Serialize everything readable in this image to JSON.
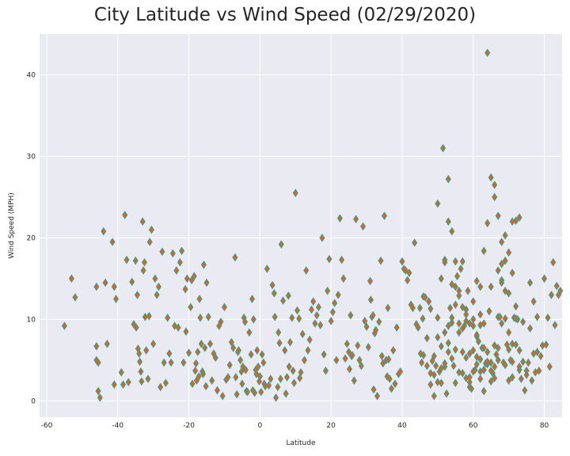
{
  "chart_data": {
    "type": "scatter",
    "title": "City Latitude vs Wind Speed (02/29/2020)",
    "xlabel": "Latitude",
    "ylabel": "Wind Speed (MPH)",
    "xlim": [
      -62,
      85
    ],
    "ylim": [
      -2,
      45
    ],
    "xticks": [
      -60,
      -40,
      -20,
      0,
      20,
      40,
      60,
      80
    ],
    "yticks": [
      0,
      10,
      20,
      30,
      40
    ],
    "grid": true,
    "marker": "diamond",
    "marker_fill": "#d2691e",
    "marker_edge": "#2f9e9a",
    "background": "#eaeaf2",
    "points": [
      [
        -55,
        9.2
      ],
      [
        -53,
        15
      ],
      [
        -52,
        12.7
      ],
      [
        -46,
        6.7
      ],
      [
        -46,
        5
      ],
      [
        -46,
        14
      ],
      [
        -45.5,
        4.7
      ],
      [
        -45.5,
        1.2
      ],
      [
        -45,
        0.4
      ],
      [
        -44,
        20.8
      ],
      [
        -43.5,
        14.5
      ],
      [
        -43,
        7
      ],
      [
        -41.5,
        19.5
      ],
      [
        -41,
        14
      ],
      [
        -41,
        2
      ],
      [
        -40.5,
        12.5
      ],
      [
        -39,
        3.5
      ],
      [
        -38.5,
        2
      ],
      [
        -38,
        22.8
      ],
      [
        -37.5,
        17.3
      ],
      [
        -37,
        2.3
      ],
      [
        -36,
        14.6
      ],
      [
        -35.5,
        9.4
      ],
      [
        -35,
        17.2
      ],
      [
        -34.8,
        9
      ],
      [
        -34.5,
        13
      ],
      [
        -34.3,
        6.4
      ],
      [
        -34,
        5.8
      ],
      [
        -33.8,
        4.8
      ],
      [
        -33.5,
        3.6
      ],
      [
        -33.3,
        2.4
      ],
      [
        -33,
        22
      ],
      [
        -32.8,
        16
      ],
      [
        -32.5,
        17
      ],
      [
        -32.3,
        10.3
      ],
      [
        -32,
        6.2
      ],
      [
        -31.5,
        2.7
      ],
      [
        -31.2,
        10.4
      ],
      [
        -31,
        19.5
      ],
      [
        -30.5,
        21
      ],
      [
        -30,
        7
      ],
      [
        -29.5,
        15
      ],
      [
        -29,
        13
      ],
      [
        -28.5,
        14
      ],
      [
        -28,
        1.7
      ],
      [
        -27.5,
        18.3
      ],
      [
        -27,
        4.7
      ],
      [
        -26.5,
        2.2
      ],
      [
        -26,
        10.2
      ],
      [
        -25.5,
        5.8
      ],
      [
        -25,
        4.7
      ],
      [
        -24.5,
        18.1
      ],
      [
        -24,
        9.2
      ],
      [
        -23.5,
        16
      ],
      [
        -23,
        9
      ],
      [
        -22.5,
        17
      ],
      [
        -22,
        18.4
      ],
      [
        -21.5,
        4.7
      ],
      [
        -21,
        13.7
      ],
      [
        -20.8,
        8.5
      ],
      [
        -20.5,
        15
      ],
      [
        -20,
        5.9
      ],
      [
        -19.5,
        11.5
      ],
      [
        -19.2,
        14.8
      ],
      [
        -19,
        2.1
      ],
      [
        -18.5,
        15.3
      ],
      [
        -18.2,
        3.7
      ],
      [
        -18,
        4.6
      ],
      [
        -17.8,
        2.5
      ],
      [
        -17.5,
        6
      ],
      [
        -17.2,
        3
      ],
      [
        -17,
        12.5
      ],
      [
        -16.8,
        10.2
      ],
      [
        -16.5,
        7
      ],
      [
        -16.2,
        3.6
      ],
      [
        -16,
        3.3
      ],
      [
        -15.8,
        16.7
      ],
      [
        -15.5,
        6.5
      ],
      [
        -15.2,
        1.8
      ],
      [
        -15,
        14.5
      ],
      [
        -14.5,
        10.3
      ],
      [
        -14,
        7
      ],
      [
        -13.5,
        2.5
      ],
      [
        -13,
        5.8
      ],
      [
        -12.5,
        5.3
      ],
      [
        -12,
        1.3
      ],
      [
        -11.5,
        9.2
      ],
      [
        -11,
        9.7
      ],
      [
        -10.5,
        0.6
      ],
      [
        -10,
        11.5
      ],
      [
        -9.5,
        2.6
      ],
      [
        -9,
        2.9
      ],
      [
        -8.5,
        4.4
      ],
      [
        -8,
        7.2
      ],
      [
        -7.5,
        6.5
      ],
      [
        -7,
        17.6
      ],
      [
        -6.8,
        2.9
      ],
      [
        -6.5,
        0.8
      ],
      [
        -6.2,
        6
      ],
      [
        -6,
        6.2
      ],
      [
        -5.5,
        5
      ],
      [
        -5.2,
        3.6
      ],
      [
        -5,
        2.1
      ],
      [
        -4.8,
        4.2
      ],
      [
        -4.5,
        10.2
      ],
      [
        -4.2,
        9.7
      ],
      [
        -4,
        3.8
      ],
      [
        -3.8,
        1.2
      ],
      [
        -3.5,
        1.1
      ],
      [
        -3,
        8.4
      ],
      [
        -2.5,
        5.7
      ],
      [
        -2.2,
        12.5
      ],
      [
        -2,
        1.3
      ],
      [
        -1.8,
        10
      ],
      [
        -1.5,
        1
      ],
      [
        -1.2,
        3.8
      ],
      [
        -1,
        3.3
      ],
      [
        -0.8,
        6.2
      ],
      [
        -0.5,
        4.2
      ],
      [
        -0.2,
        2.4
      ],
      [
        0,
        3
      ],
      [
        0.3,
        1.1
      ],
      [
        0.6,
        5.7
      ],
      [
        1,
        4.7
      ],
      [
        1.2,
        2.1
      ],
      [
        1.5,
        1.8
      ],
      [
        2,
        16.2
      ],
      [
        2.5,
        1.9
      ],
      [
        3,
        2.7
      ],
      [
        3.5,
        14.2
      ],
      [
        4,
        13.2
      ],
      [
        4.2,
        10.3
      ],
      [
        4.5,
        0.4
      ],
      [
        5,
        1.7
      ],
      [
        5.2,
        8.4
      ],
      [
        5.5,
        7.1
      ],
      [
        5.8,
        2.7
      ],
      [
        6,
        19.2
      ],
      [
        6.5,
        12.3
      ],
      [
        7,
        6.2
      ],
      [
        7.3,
        0.9
      ],
      [
        7.6,
        2.9
      ],
      [
        8,
        12.9
      ],
      [
        8.2,
        4.2
      ],
      [
        8.5,
        7.2
      ],
      [
        9,
        10.2
      ],
      [
        9.3,
        3.7
      ],
      [
        9.6,
        2.2
      ],
      [
        10,
        25.5
      ],
      [
        10.5,
        11.1
      ],
      [
        11,
        10.1
      ],
      [
        11.2,
        2.8
      ],
      [
        11.5,
        3.5
      ],
      [
        12,
        8.2
      ],
      [
        12.5,
        5
      ],
      [
        13,
        16
      ],
      [
        13.5,
        6.2
      ],
      [
        14,
        7.5
      ],
      [
        14.5,
        11.2
      ],
      [
        15,
        12.2
      ],
      [
        15.5,
        9.5
      ],
      [
        16,
        10.5
      ],
      [
        16.5,
        11.5
      ],
      [
        17,
        9.3
      ],
      [
        17.5,
        20
      ],
      [
        18,
        5.7
      ],
      [
        18.5,
        3.7
      ],
      [
        19,
        13.5
      ],
      [
        19.5,
        17.4
      ],
      [
        20,
        9.8
      ],
      [
        20.5,
        10.9
      ],
      [
        21,
        12
      ],
      [
        21.5,
        5
      ],
      [
        22,
        13
      ],
      [
        22.5,
        22.4
      ],
      [
        23,
        17.3
      ],
      [
        23.5,
        15
      ],
      [
        24,
        5.2
      ],
      [
        24.5,
        7
      ],
      [
        25,
        6
      ],
      [
        25.2,
        3.9
      ],
      [
        25.5,
        10.5
      ],
      [
        25.8,
        5.5
      ],
      [
        26,
        5.6
      ],
      [
        26.5,
        2.5
      ],
      [
        27,
        22.3
      ],
      [
        27.5,
        6.8
      ],
      [
        28,
        5
      ],
      [
        28.5,
        4.3
      ],
      [
        29,
        21.4
      ],
      [
        29.5,
        9.8
      ],
      [
        30,
        9.1
      ],
      [
        30.5,
        6.6
      ],
      [
        31,
        14.7
      ],
      [
        31.2,
        12.4
      ],
      [
        31.5,
        10.3
      ],
      [
        31.8,
        10.5
      ],
      [
        32,
        1.4
      ],
      [
        32.3,
        8.3
      ],
      [
        32.6,
        8.7
      ],
      [
        33,
        0.6
      ],
      [
        33.5,
        9.7
      ],
      [
        34,
        17.2
      ],
      [
        34.3,
        5.5
      ],
      [
        34.6,
        4.6
      ],
      [
        35,
        22.7
      ],
      [
        35.5,
        5
      ],
      [
        35.8,
        3
      ],
      [
        36,
        11.4
      ],
      [
        36.2,
        5.1
      ],
      [
        36.5,
        2.7
      ],
      [
        37,
        1.5
      ],
      [
        37.5,
        6.2
      ],
      [
        38,
        2.1
      ],
      [
        38.5,
        9
      ],
      [
        39,
        3.3
      ],
      [
        39.5,
        3.6
      ],
      [
        40,
        17.1
      ],
      [
        40.5,
        16.2
      ],
      [
        41,
        16
      ],
      [
        41.5,
        14.8
      ],
      [
        42,
        15.7
      ],
      [
        42.5,
        11.8
      ],
      [
        43,
        11.4
      ],
      [
        43.5,
        19.4
      ],
      [
        44,
        9.4
      ],
      [
        44.5,
        9
      ],
      [
        45,
        11.4
      ],
      [
        45.2,
        5.8
      ],
      [
        45.5,
        4.7
      ],
      [
        45.8,
        10.1
      ],
      [
        46,
        12.8
      ],
      [
        46.5,
        12.7
      ],
      [
        47,
        7.7
      ],
      [
        47.5,
        12.2
      ],
      [
        48,
        11.3
      ],
      [
        48.5,
        4.9
      ],
      [
        49,
        0.6
      ],
      [
        49.5,
        4.3
      ],
      [
        50,
        10.2
      ],
      [
        50.5,
        3.6
      ],
      [
        51,
        2.2
      ],
      [
        51.5,
        31
      ],
      [
        52,
        4.2
      ],
      [
        52.5,
        0.9
      ],
      [
        53,
        27.2
      ],
      [
        53.5,
        11.4
      ],
      [
        54,
        20.8
      ],
      [
        54.5,
        4.3
      ],
      [
        55,
        17.1
      ],
      [
        55.5,
        15.3
      ],
      [
        56,
        12.9
      ],
      [
        56.5,
        16.2
      ],
      [
        57,
        17.1
      ],
      [
        57.5,
        9.2
      ],
      [
        58,
        11.2
      ],
      [
        58.5,
        13.5
      ],
      [
        59,
        2.9
      ],
      [
        59.5,
        1.5
      ],
      [
        60,
        9.2
      ],
      [
        60.5,
        3.8
      ],
      [
        61,
        7.9
      ],
      [
        61.5,
        7.3
      ],
      [
        62,
        14
      ],
      [
        62.5,
        6.5
      ],
      [
        63,
        18.4
      ],
      [
        63.5,
        4.6
      ],
      [
        64,
        6
      ],
      [
        64.5,
        11
      ],
      [
        65,
        27.4
      ],
      [
        65.5,
        3.4
      ],
      [
        66,
        6.8
      ],
      [
        66.5,
        5.7
      ],
      [
        67,
        10.3
      ],
      [
        67.5,
        10.3
      ],
      [
        68,
        14.8
      ],
      [
        68.5,
        4.7
      ],
      [
        69,
        13.5
      ],
      [
        69.5,
        6.9
      ],
      [
        70,
        2.5
      ],
      [
        70.5,
        5
      ],
      [
        71,
        2.9
      ],
      [
        71.5,
        10.2
      ],
      [
        72,
        11.6
      ],
      [
        72.5,
        10
      ],
      [
        73,
        3.8
      ],
      [
        73.5,
        2.7
      ],
      [
        74,
        9.7
      ],
      [
        74.5,
        1.3
      ],
      [
        75,
        3.7
      ],
      [
        75.5,
        4.7
      ],
      [
        76,
        8.9
      ],
      [
        76.5,
        2.5
      ],
      [
        77,
        12.2
      ],
      [
        77.5,
        3.5
      ],
      [
        78,
        6
      ],
      [
        78.5,
        3.7
      ],
      [
        79,
        5.5
      ],
      [
        79.5,
        6.8
      ],
      [
        80,
        15
      ],
      [
        80.5,
        6.9
      ],
      [
        81,
        10.2
      ],
      [
        81.5,
        4.2
      ],
      [
        82,
        13
      ],
      [
        82.5,
        17
      ],
      [
        83,
        9.3
      ],
      [
        83.5,
        14.1
      ],
      [
        84,
        13
      ],
      [
        84.5,
        13.5
      ],
      [
        62,
        5.1
      ],
      [
        63,
        9.5
      ],
      [
        64,
        42.7
      ],
      [
        65,
        4.7
      ],
      [
        66,
        26.5
      ],
      [
        67,
        22.7
      ],
      [
        68,
        19.5
      ],
      [
        69,
        20.3
      ],
      [
        70,
        18.2
      ],
      [
        71,
        22
      ],
      [
        72,
        22.1
      ],
      [
        73,
        22.5
      ],
      [
        75,
        3.2
      ],
      [
        76,
        14.5
      ],
      [
        60,
        12.2
      ],
      [
        61,
        14.7
      ],
      [
        62,
        10.6
      ],
      [
        63,
        3.8
      ],
      [
        64,
        21.8
      ],
      [
        65,
        14
      ],
      [
        66,
        25
      ],
      [
        67,
        16
      ],
      [
        68,
        9.5
      ],
      [
        69,
        10.1
      ],
      [
        70,
        8.4
      ],
      [
        71,
        7
      ],
      [
        72,
        10.1
      ],
      [
        73,
        6.2
      ],
      [
        74,
        4.8
      ],
      [
        57,
        3.4
      ],
      [
        58,
        2.8
      ],
      [
        59,
        5.8
      ],
      [
        60,
        10
      ],
      [
        61,
        4.5
      ],
      [
        62,
        3.6
      ],
      [
        63,
        3.8
      ],
      [
        64,
        4.5
      ],
      [
        65,
        3.7
      ],
      [
        66,
        4.2
      ],
      [
        67,
        5
      ],
      [
        68,
        16.8
      ],
      [
        69,
        17.2
      ],
      [
        70,
        13.2
      ],
      [
        71,
        15.7
      ],
      [
        72,
        6.9
      ],
      [
        73,
        4.2
      ],
      [
        77,
        5.8
      ],
      [
        78,
        10.3
      ],
      [
        52,
        17.3
      ],
      [
        53,
        22
      ],
      [
        54,
        14.3
      ],
      [
        55,
        14
      ],
      [
        56,
        13.5
      ],
      [
        57,
        11.5
      ],
      [
        58,
        9.8
      ],
      [
        59,
        9.5
      ],
      [
        60,
        6.2
      ],
      [
        61,
        5.4
      ],
      [
        62,
        9.3
      ],
      [
        63,
        6.5
      ],
      [
        64,
        4.8
      ],
      [
        65,
        2.4
      ],
      [
        66,
        2.8
      ],
      [
        67,
        6.5
      ],
      [
        68,
        14.5
      ],
      [
        69,
        4.4
      ],
      [
        70,
        6.3
      ],
      [
        71,
        4.8
      ],
      [
        50,
        24.2
      ],
      [
        51,
        15
      ],
      [
        52,
        17
      ],
      [
        53,
        7.1
      ],
      [
        54,
        9.6
      ],
      [
        55,
        11.8
      ],
      [
        56,
        9.5
      ],
      [
        57,
        6
      ],
      [
        58,
        5.3
      ],
      [
        59,
        2.3
      ],
      [
        60,
        3.6
      ],
      [
        61,
        8.1
      ],
      [
        62,
        2.7
      ],
      [
        63,
        1.2
      ],
      [
        46,
        5.6
      ],
      [
        47,
        4.3
      ],
      [
        48,
        3.4
      ],
      [
        49,
        3.2
      ],
      [
        50,
        2.3
      ],
      [
        51,
        4
      ],
      [
        52,
        4.6
      ],
      [
        53,
        6
      ],
      [
        54,
        5.2
      ],
      [
        55,
        6.3
      ],
      [
        56,
        8.4
      ],
      [
        57,
        8.9
      ],
      [
        58,
        10.6
      ],
      [
        59,
        1.7
      ],
      [
        48,
        2
      ],
      [
        49,
        5.5
      ],
      [
        50,
        7.8
      ],
      [
        51,
        6.7
      ],
      [
        52,
        8.4
      ],
      [
        53,
        9.2
      ],
      [
        54,
        10.2
      ],
      [
        55,
        2.2
      ],
      [
        56,
        3.5
      ]
    ]
  }
}
